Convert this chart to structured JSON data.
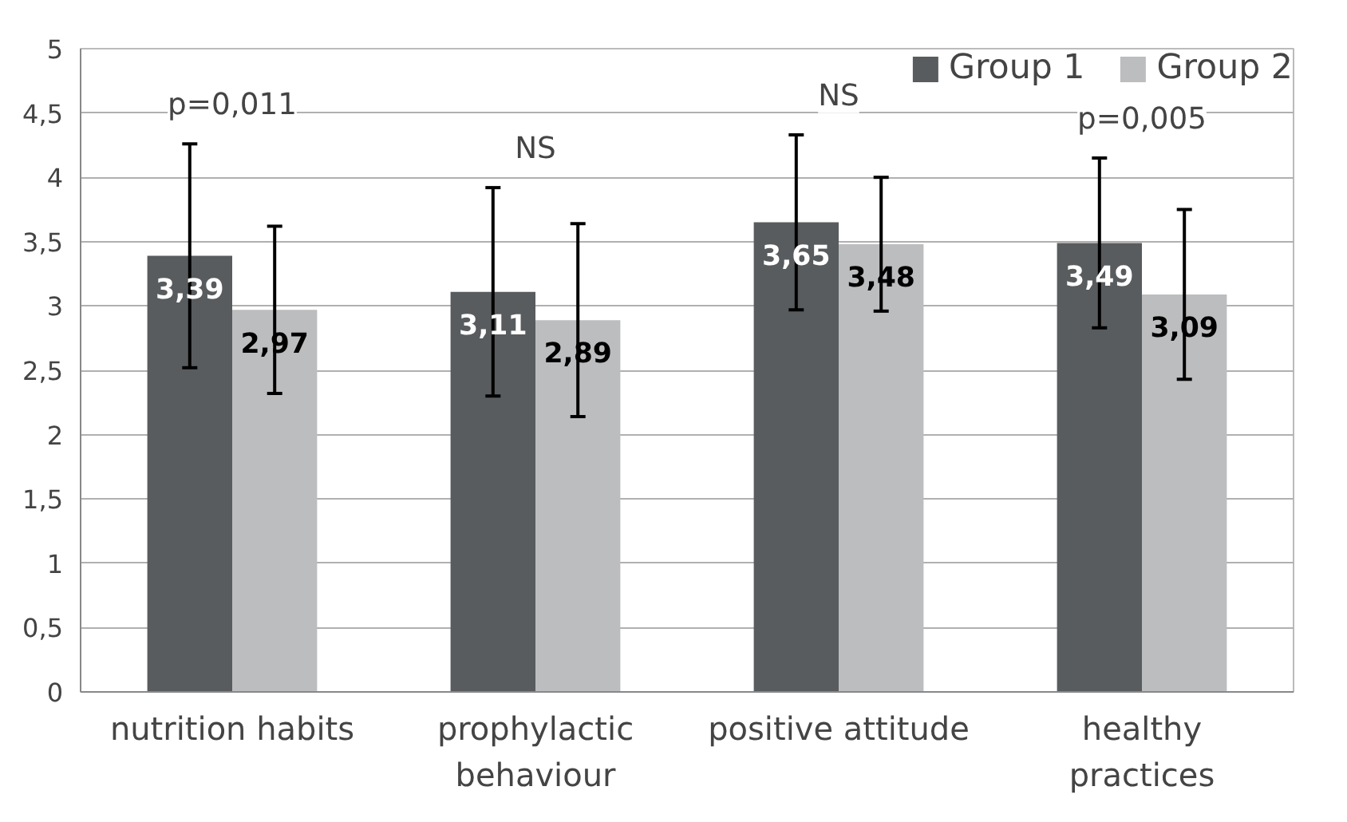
{
  "chart_data": {
    "type": "bar",
    "categories": [
      "nutrition habits",
      "prophylactic\nbehaviour",
      "positive attitude",
      "healthy\npractices"
    ],
    "series": [
      {
        "name": "Group 1",
        "color": "#595c5e",
        "values": [
          3.39,
          3.11,
          3.65,
          3.49
        ],
        "errors": [
          0.87,
          0.81,
          0.68,
          0.66
        ],
        "value_labels": [
          "3,39",
          "3,11",
          "3,65",
          "3,49"
        ]
      },
      {
        "name": "Group 2",
        "color": "#bcbdbf",
        "values": [
          2.97,
          2.89,
          3.48,
          3.09
        ],
        "errors": [
          0.65,
          0.75,
          0.52,
          0.66
        ],
        "value_labels": [
          "2,97",
          "2,89",
          "3,48",
          "3,09"
        ]
      }
    ],
    "ylim": [
      0,
      5
    ],
    "yticks": [
      0,
      {
        "value": 0.5,
        "label": "0,5"
      },
      1,
      {
        "value": 1.5,
        "label": "1,5"
      },
      2,
      {
        "value": 2.5,
        "label": "2,5"
      },
      3,
      {
        "value": 3.5,
        "label": "3,5"
      },
      4,
      {
        "value": 4.5,
        "label": "4,5"
      },
      5
    ],
    "annotations": [
      "p=0,011",
      "NS",
      "NS",
      "p=0,005"
    ],
    "grid": "y",
    "legend": "top right"
  }
}
